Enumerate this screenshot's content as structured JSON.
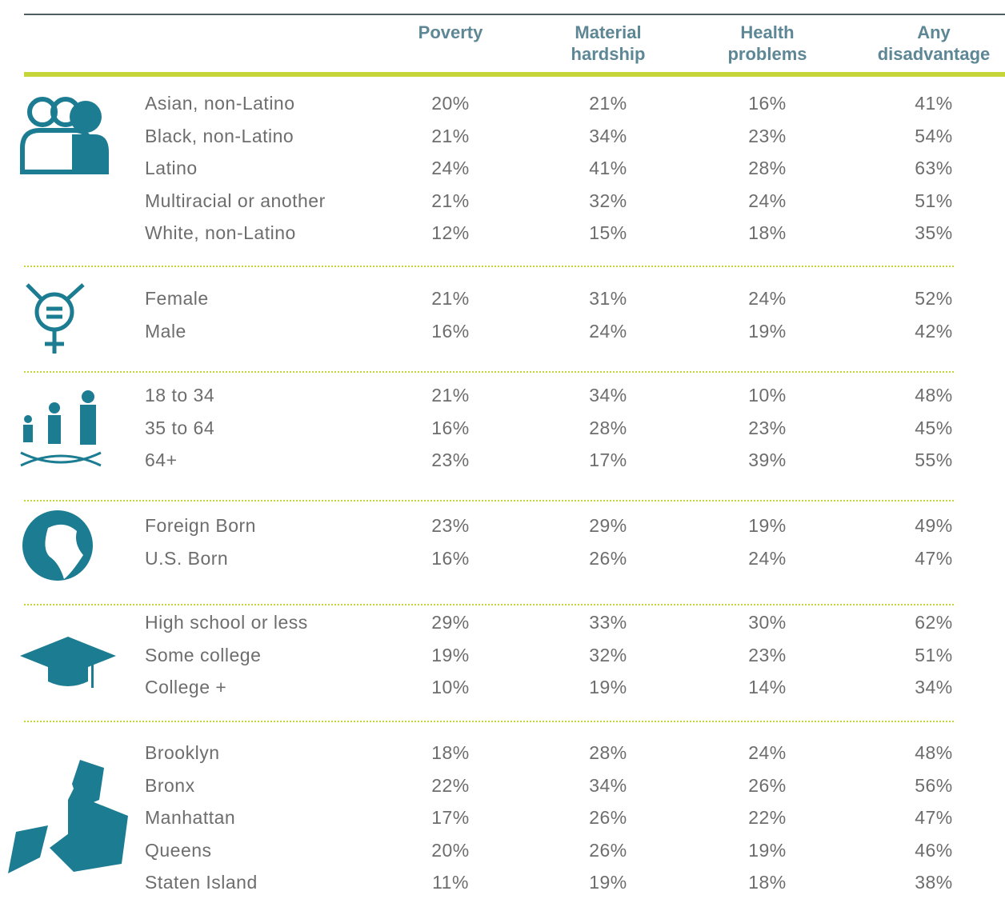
{
  "header": {
    "columns": [
      "Poverty",
      "Material hardship",
      "Health problems",
      "Any disadvantage"
    ]
  },
  "groups": [
    {
      "rows": [
        {
          "label": "Asian, non-Latino",
          "values": [
            "20%",
            "21%",
            "16%",
            "41%"
          ]
        },
        {
          "label": "Black, non-Latino",
          "values": [
            "21%",
            "34%",
            "23%",
            "54%"
          ]
        },
        {
          "label": "Latino",
          "values": [
            "24%",
            "41%",
            "28%",
            "63%"
          ]
        },
        {
          "label": "Multiracial or another",
          "values": [
            "21%",
            "32%",
            "24%",
            "51%"
          ]
        },
        {
          "label": "White, non-Latino",
          "values": [
            "12%",
            "15%",
            "18%",
            "35%"
          ]
        }
      ]
    },
    {
      "rows": [
        {
          "label": "Female",
          "values": [
            "21%",
            "31%",
            "24%",
            "52%"
          ]
        },
        {
          "label": "Male",
          "values": [
            "16%",
            "24%",
            "19%",
            "42%"
          ]
        }
      ]
    },
    {
      "rows": [
        {
          "label": "18 to 34",
          "values": [
            "21%",
            "34%",
            "10%",
            "48%"
          ]
        },
        {
          "label": "35 to 64",
          "values": [
            "16%",
            "28%",
            "23%",
            "45%"
          ]
        },
        {
          "label": "64+",
          "values": [
            "23%",
            "17%",
            "39%",
            "55%"
          ]
        }
      ]
    },
    {
      "rows": [
        {
          "label": "Foreign Born",
          "values": [
            "23%",
            "29%",
            "19%",
            "49%"
          ]
        },
        {
          "label": "U.S. Born",
          "values": [
            "16%",
            "26%",
            "24%",
            "47%"
          ]
        }
      ]
    },
    {
      "rows": [
        {
          "label": "High school or less",
          "values": [
            "29%",
            "33%",
            "30%",
            "62%"
          ]
        },
        {
          "label": "Some college",
          "values": [
            "19%",
            "32%",
            "23%",
            "51%"
          ]
        },
        {
          "label": "College +",
          "values": [
            "10%",
            "19%",
            "14%",
            "34%"
          ]
        }
      ]
    },
    {
      "rows": [
        {
          "label": "Brooklyn",
          "values": [
            "18%",
            "28%",
            "24%",
            "48%"
          ]
        },
        {
          "label": "Bronx",
          "values": [
            "22%",
            "34%",
            "26%",
            "56%"
          ]
        },
        {
          "label": "Manhattan",
          "values": [
            "17%",
            "26%",
            "22%",
            "47%"
          ]
        },
        {
          "label": "Queens",
          "values": [
            "20%",
            "26%",
            "19%",
            "46%"
          ]
        },
        {
          "label": "Staten Island",
          "values": [
            "11%",
            "19%",
            "18%",
            "38%"
          ]
        }
      ]
    }
  ]
}
